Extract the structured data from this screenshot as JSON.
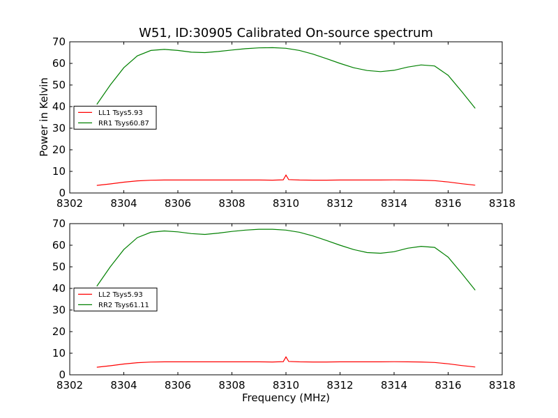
{
  "figure": {
    "title": "W51, ID:30905 Calibrated On-source spectrum",
    "xlabel": "Frequency (MHz)",
    "ylabel": "Power in Kelvin"
  },
  "chart_data": [
    {
      "type": "line",
      "panel": "top",
      "title": "W51, ID:30905 Calibrated On-source spectrum",
      "xlabel": "",
      "ylabel": "Power in Kelvin",
      "xlim": [
        8302,
        8318
      ],
      "ylim": [
        0,
        70
      ],
      "xticks": [
        8302,
        8304,
        8306,
        8308,
        8310,
        8312,
        8314,
        8316,
        8318
      ],
      "yticks": [
        0,
        10,
        20,
        30,
        40,
        50,
        60,
        70
      ],
      "legend_position": "center-left",
      "series": [
        {
          "name": "LL1 Tsys5.93",
          "color": "#ff0000",
          "x": [
            8303.0,
            8303.5,
            8304.0,
            8304.5,
            8305.0,
            8305.5,
            8306.0,
            8306.5,
            8307.0,
            8307.5,
            8308.0,
            8308.5,
            8309.0,
            8309.5,
            8309.9,
            8310.0,
            8310.1,
            8310.5,
            8311.0,
            8311.5,
            8312.0,
            8312.5,
            8313.0,
            8313.5,
            8314.0,
            8314.5,
            8315.0,
            8315.5,
            8316.0,
            8316.5,
            8317.0
          ],
          "y": [
            3.5,
            4.2,
            5.0,
            5.6,
            5.9,
            6.0,
            6.0,
            6.0,
            6.0,
            6.0,
            6.0,
            6.0,
            6.0,
            5.95,
            6.1,
            8.3,
            6.2,
            6.0,
            5.95,
            5.95,
            6.0,
            6.0,
            6.0,
            6.0,
            6.05,
            6.0,
            5.95,
            5.7,
            5.1,
            4.3,
            3.6
          ]
        },
        {
          "name": "RR1 Tsys60.87",
          "color": "#008000",
          "x": [
            8303.0,
            8303.5,
            8304.0,
            8304.5,
            8305.0,
            8305.5,
            8306.0,
            8306.5,
            8307.0,
            8307.5,
            8308.0,
            8308.5,
            8309.0,
            8309.5,
            8310.0,
            8310.5,
            8311.0,
            8311.5,
            8312.0,
            8312.5,
            8313.0,
            8313.5,
            8314.0,
            8314.5,
            8315.0,
            8315.5,
            8316.0,
            8316.5,
            8317.0
          ],
          "y": [
            41.0,
            50.0,
            58.0,
            63.5,
            66.0,
            66.5,
            66.0,
            65.2,
            65.0,
            65.5,
            66.2,
            66.8,
            67.2,
            67.3,
            67.0,
            66.0,
            64.3,
            62.2,
            60.0,
            58.0,
            56.7,
            56.2,
            56.8,
            58.3,
            59.3,
            58.8,
            54.5,
            47.0,
            39.2
          ]
        }
      ]
    },
    {
      "type": "line",
      "panel": "bottom",
      "title": "",
      "xlabel": "Frequency (MHz)",
      "ylabel": "",
      "xlim": [
        8302,
        8318
      ],
      "ylim": [
        0,
        70
      ],
      "xticks": [
        8302,
        8304,
        8306,
        8308,
        8310,
        8312,
        8314,
        8316,
        8318
      ],
      "yticks": [
        0,
        10,
        20,
        30,
        40,
        50,
        60,
        70
      ],
      "legend_position": "center-left",
      "series": [
        {
          "name": "LL2 Tsys5.93",
          "color": "#ff0000",
          "x": [
            8303.0,
            8303.5,
            8304.0,
            8304.5,
            8305.0,
            8305.5,
            8306.0,
            8306.5,
            8307.0,
            8307.5,
            8308.0,
            8308.5,
            8309.0,
            8309.5,
            8309.9,
            8310.0,
            8310.1,
            8310.5,
            8311.0,
            8311.5,
            8312.0,
            8312.5,
            8313.0,
            8313.5,
            8314.0,
            8314.5,
            8315.0,
            8315.5,
            8316.0,
            8316.5,
            8317.0
          ],
          "y": [
            3.5,
            4.2,
            5.0,
            5.6,
            5.9,
            6.0,
            6.0,
            6.0,
            6.0,
            6.0,
            6.0,
            6.0,
            6.0,
            5.95,
            6.1,
            8.3,
            6.2,
            6.0,
            5.95,
            5.95,
            6.0,
            6.0,
            6.0,
            6.0,
            6.05,
            6.0,
            5.95,
            5.7,
            5.1,
            4.3,
            3.6
          ]
        },
        {
          "name": "RR2 Tsys61.11",
          "color": "#008000",
          "x": [
            8303.0,
            8303.5,
            8304.0,
            8304.5,
            8305.0,
            8305.5,
            8306.0,
            8306.5,
            8307.0,
            8307.5,
            8308.0,
            8308.5,
            8309.0,
            8309.5,
            8310.0,
            8310.5,
            8311.0,
            8311.5,
            8312.0,
            8312.5,
            8313.0,
            8313.5,
            8314.0,
            8314.5,
            8315.0,
            8315.5,
            8316.0,
            8316.5,
            8317.0
          ],
          "y": [
            41.0,
            50.0,
            58.0,
            63.5,
            66.0,
            66.6,
            66.2,
            65.4,
            65.0,
            65.6,
            66.4,
            67.0,
            67.4,
            67.4,
            67.0,
            66.0,
            64.3,
            62.2,
            60.0,
            58.0,
            56.6,
            56.3,
            57.0,
            58.6,
            59.5,
            59.0,
            54.5,
            47.0,
            39.2
          ]
        }
      ]
    }
  ]
}
